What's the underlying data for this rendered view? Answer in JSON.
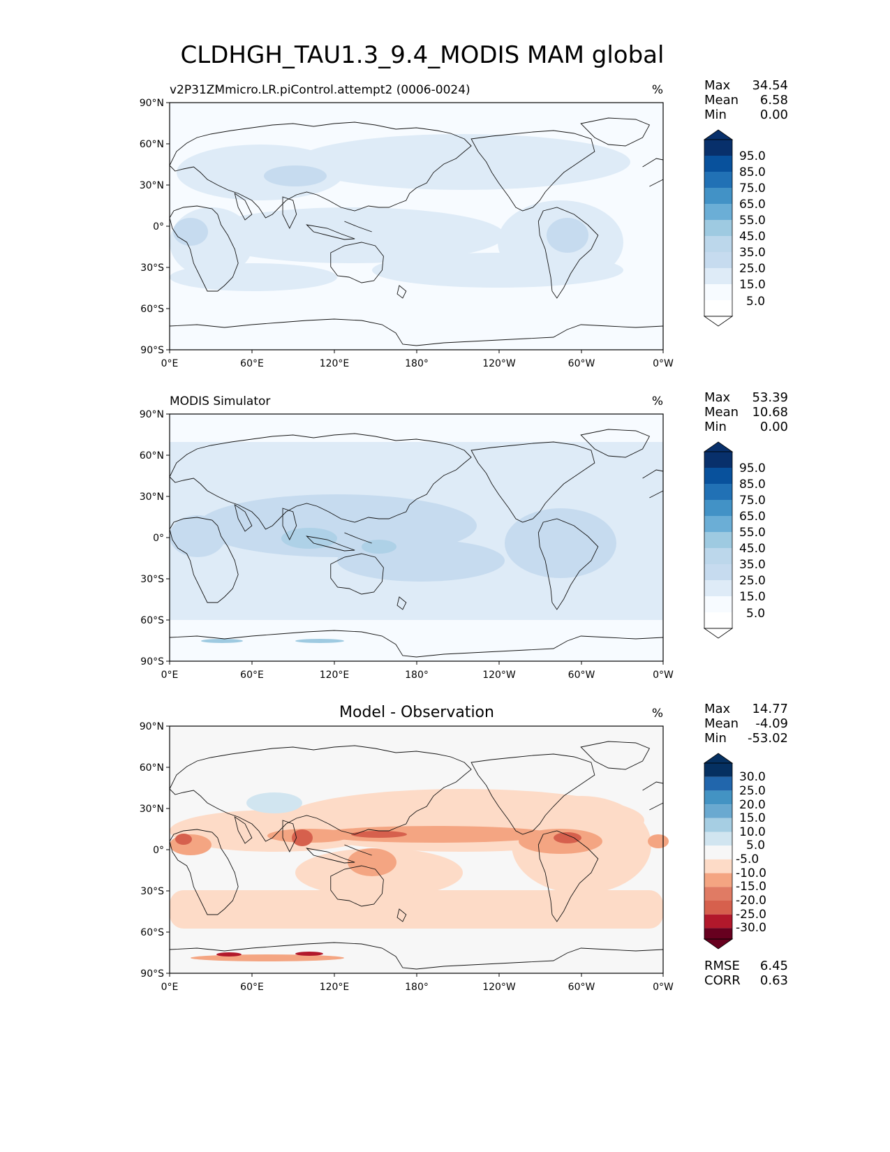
{
  "figure": {
    "title": "CLDHGH_TAU1.3_9.4_MODIS MAM global"
  },
  "axes": {
    "x_ticks": [
      "0°E",
      "60°E",
      "120°E",
      "180°",
      "120°W",
      "60°W",
      "0°W"
    ],
    "y_ticks": [
      "90°N",
      "60°N",
      "30°N",
      "0°",
      "30°S",
      "60°S",
      "90°S"
    ]
  },
  "panels": [
    {
      "title": "v2P31ZMmicro.LR.piControl.attempt2 (0006-0024)",
      "units": "%",
      "stats": [
        {
          "label": "Max",
          "value": "34.54"
        },
        {
          "label": "Mean",
          "value": "6.58"
        },
        {
          "label": "Min",
          "value": "0.00"
        }
      ],
      "colorbar": {
        "labels": [
          "95.0",
          "85.0",
          "75.0",
          "65.0",
          "55.0",
          "45.0",
          "35.0",
          "25.0",
          "15.0",
          "5.0"
        ],
        "colors": [
          "#08306b",
          "#08519c",
          "#2171b5",
          "#4292c6",
          "#6baed6",
          "#9ecae1",
          "#bcd7eb",
          "#c6dbef",
          "#deebf7",
          "#f7fbff",
          "#ffffff"
        ]
      }
    },
    {
      "title": "MODIS Simulator",
      "units": "%",
      "stats": [
        {
          "label": "Max",
          "value": "53.39"
        },
        {
          "label": "Mean",
          "value": "10.68"
        },
        {
          "label": "Min",
          "value": "0.00"
        }
      ],
      "colorbar": {
        "labels": [
          "95.0",
          "85.0",
          "75.0",
          "65.0",
          "55.0",
          "45.0",
          "35.0",
          "25.0",
          "15.0",
          "5.0"
        ],
        "colors": [
          "#08306b",
          "#08519c",
          "#2171b5",
          "#4292c6",
          "#6baed6",
          "#9ecae1",
          "#bcd7eb",
          "#c6dbef",
          "#deebf7",
          "#f7fbff",
          "#ffffff"
        ]
      }
    },
    {
      "title": "Model - Observation",
      "units": "%",
      "stats": [
        {
          "label": "Max",
          "value": "14.77"
        },
        {
          "label": "Mean",
          "value": "-4.09"
        },
        {
          "label": "Min",
          "value": "-53.02"
        }
      ],
      "colorbar": {
        "labels": [
          "30.0",
          "25.0",
          "20.0",
          "15.0",
          "10.0",
          "5.0",
          "-5.0",
          "-10.0",
          "-15.0",
          "-20.0",
          "-25.0",
          "-30.0"
        ],
        "colors": [
          "#053061",
          "#2166ac",
          "#4393c3",
          "#6aa9d0",
          "#a6cee3",
          "#d1e5f0",
          "#f7f7f7",
          "#fddbc7",
          "#f4a582",
          "#e07b64",
          "#d6604d",
          "#b2182b",
          "#67001f"
        ]
      },
      "extra_stats": [
        {
          "label": "RMSE",
          "value": "6.45"
        },
        {
          "label": "CORR",
          "value": "0.63"
        }
      ]
    }
  ],
  "chart_data": [
    {
      "type": "heatmap",
      "title": "v2P31ZMmicro.LR.piControl.attempt2 (0006-0024)",
      "units": "%",
      "xlim": [
        0,
        360
      ],
      "ylim": [
        -90,
        90
      ],
      "stats": {
        "max": 34.54,
        "mean": 6.58,
        "min": 0.0
      },
      "levels": [
        5,
        15,
        25,
        35,
        45,
        55,
        65,
        75,
        85,
        95
      ],
      "grid": false
    },
    {
      "type": "heatmap",
      "title": "MODIS Simulator",
      "units": "%",
      "xlim": [
        0,
        360
      ],
      "ylim": [
        -90,
        90
      ],
      "stats": {
        "max": 53.39,
        "mean": 10.68,
        "min": 0.0
      },
      "levels": [
        5,
        15,
        25,
        35,
        45,
        55,
        65,
        75,
        85,
        95
      ],
      "grid": false
    },
    {
      "type": "heatmap",
      "title": "Model - Observation",
      "units": "%",
      "xlim": [
        0,
        360
      ],
      "ylim": [
        -90,
        90
      ],
      "stats": {
        "max": 14.77,
        "mean": -4.09,
        "min": -53.02,
        "rmse": 6.45,
        "corr": 0.63
      },
      "levels": [
        -30,
        -25,
        -20,
        -15,
        -10,
        -5,
        5,
        10,
        15,
        20,
        25,
        30
      ],
      "grid": false
    }
  ]
}
